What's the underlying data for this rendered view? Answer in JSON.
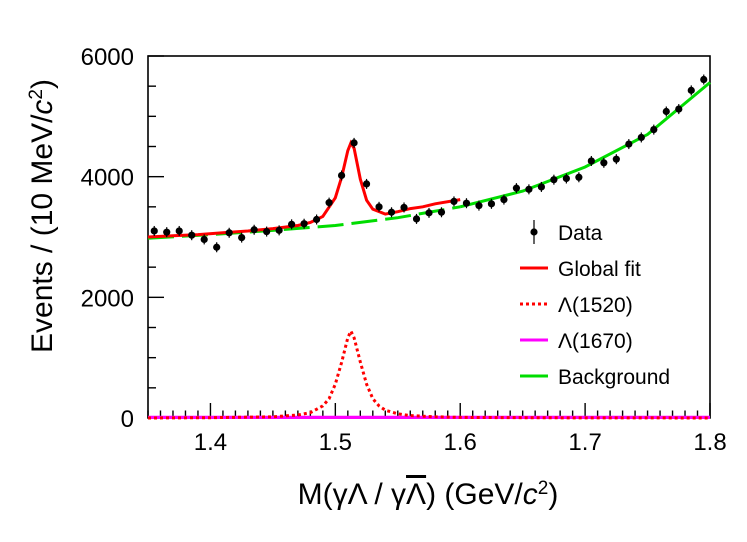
{
  "chart_data": {
    "type": "line",
    "xlabel": "M(γΛ / γΛ) (GeV/c²)",
    "ylabel": "Events / (10 MeV/c²)",
    "xlim": [
      1.35,
      1.8
    ],
    "ylim": [
      0,
      6000
    ],
    "x_ticks": [
      1.4,
      1.5,
      1.6,
      1.7,
      1.8
    ],
    "x_tick_labels": [
      "1.4",
      "1.5",
      "1.6",
      "1.7",
      "1.8"
    ],
    "y_ticks": [
      0,
      2000,
      4000,
      6000
    ],
    "y_tick_labels": [
      "0",
      "2000",
      "4000",
      "6000"
    ],
    "legend_position": "right",
    "legend": [
      {
        "label": "Data",
        "color": "#000000",
        "style": "marker"
      },
      {
        "label": "Global fit",
        "color": "#ff0000",
        "style": "solid"
      },
      {
        "label": "Λ(1520)",
        "color": "#ff0000",
        "style": "dotted"
      },
      {
        "label": "Λ(1670)",
        "color": "#ff00ff",
        "style": "solid"
      },
      {
        "label": "Background",
        "color": "#00dd00",
        "style": "solid"
      }
    ],
    "series": [
      {
        "name": "Data",
        "kind": "points",
        "color": "#000000",
        "x": [
          1.355,
          1.365,
          1.375,
          1.385,
          1.395,
          1.405,
          1.415,
          1.425,
          1.435,
          1.445,
          1.455,
          1.465,
          1.475,
          1.485,
          1.495,
          1.505,
          1.515,
          1.525,
          1.535,
          1.545,
          1.555,
          1.565,
          1.575,
          1.585,
          1.595,
          1.605,
          1.615,
          1.625,
          1.635,
          1.645,
          1.655,
          1.665,
          1.675,
          1.685,
          1.695,
          1.705,
          1.715,
          1.725,
          1.735,
          1.745,
          1.755,
          1.765,
          1.775,
          1.785,
          1.795
        ],
        "y": [
          3100,
          3080,
          3100,
          3030,
          2960,
          2830,
          3070,
          2990,
          3120,
          3090,
          3110,
          3210,
          3220,
          3290,
          3570,
          4020,
          4560,
          3880,
          3500,
          3410,
          3490,
          3300,
          3400,
          3410,
          3590,
          3560,
          3520,
          3550,
          3620,
          3810,
          3790,
          3830,
          3950,
          3970,
          3990,
          4260,
          4230,
          4290,
          4540,
          4650,
          4780,
          5080,
          5120,
          5430,
          5610
        ]
      },
      {
        "name": "Global fit",
        "kind": "line",
        "color": "#ff0000",
        "x": [
          1.35,
          1.37,
          1.39,
          1.41,
          1.43,
          1.45,
          1.47,
          1.48,
          1.49,
          1.5,
          1.505,
          1.51,
          1.5125,
          1.515,
          1.52,
          1.525,
          1.53,
          1.54,
          1.55,
          1.56,
          1.57,
          1.58,
          1.6
        ],
        "y": [
          3000,
          3020,
          3040,
          3070,
          3100,
          3140,
          3190,
          3240,
          3340,
          3650,
          3990,
          4430,
          4560,
          4470,
          3960,
          3610,
          3460,
          3380,
          3420,
          3470,
          3500,
          3550,
          3620
        ]
      },
      {
        "name": "Λ(1520)",
        "kind": "line",
        "color": "#ff0000",
        "x": [
          1.35,
          1.4,
          1.45,
          1.47,
          1.48,
          1.49,
          1.495,
          1.5,
          1.505,
          1.51,
          1.5125,
          1.515,
          1.52,
          1.525,
          1.53,
          1.535,
          1.54,
          1.55,
          1.56,
          1.58,
          1.6,
          1.65,
          1.7,
          1.75,
          1.8
        ],
        "y": [
          0,
          5,
          20,
          50,
          90,
          200,
          320,
          560,
          920,
          1330,
          1440,
          1330,
          930,
          560,
          320,
          200,
          130,
          70,
          40,
          20,
          10,
          5,
          2,
          1,
          0
        ]
      },
      {
        "name": "Λ(1670)",
        "kind": "line",
        "color": "#ff00ff",
        "x": [
          1.35,
          1.8
        ],
        "y": [
          10,
          10
        ]
      },
      {
        "name": "Background",
        "kind": "line",
        "color": "#00dd00",
        "x": [
          1.35,
          1.4,
          1.45,
          1.5,
          1.55,
          1.6,
          1.65,
          1.7,
          1.75,
          1.8
        ],
        "y": [
          2980,
          3040,
          3110,
          3190,
          3320,
          3500,
          3760,
          4160,
          4700,
          5560
        ],
        "dashed_before_x": 1.6
      }
    ]
  }
}
